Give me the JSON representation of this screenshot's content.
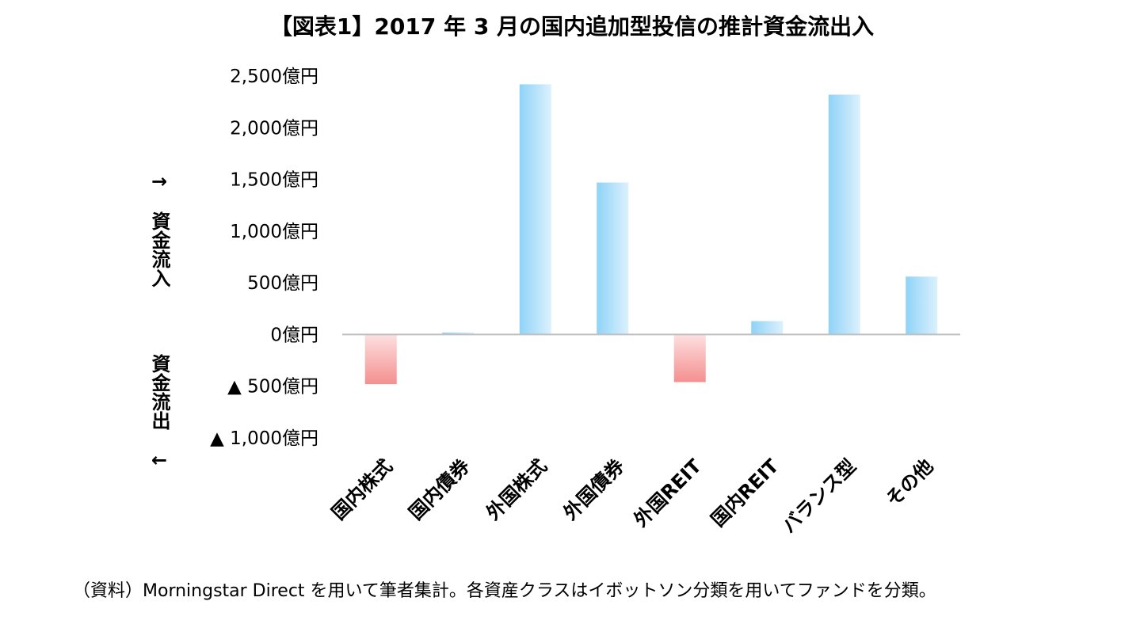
{
  "chart_data": {
    "type": "bar",
    "title": "【図表1】2017 年 3 月の国内追加型投信の推計資金流出入",
    "categories": [
      "国内株式",
      "国内債券",
      "外国株式",
      "外国債券",
      "外国REIT",
      "国内REIT",
      "バランス型",
      "その他"
    ],
    "values": [
      -480,
      20,
      2420,
      1470,
      -460,
      130,
      2320,
      560
    ],
    "unit": "億円",
    "ylim": [
      -1000,
      2500
    ],
    "yticks": [
      2500,
      2000,
      1500,
      1000,
      500,
      0,
      -500,
      -1000
    ],
    "ytick_labels": [
      "2,500億円",
      "2,000億円",
      "1,500億円",
      "1,000億円",
      "500億円",
      "0億円",
      "▲ 500億円",
      "▲ 1,000億円"
    ],
    "ylabel_positive": "→　資金流入",
    "ylabel_negative": "資金流出　←",
    "grid": false,
    "legend": "none",
    "colors": {
      "positive": "#8fd3f7",
      "negative": "#f7a1a1"
    }
  },
  "source_note": "（資料）Morningstar Direct を用いて筆者集計。各資産クラスはイボットソン分類を用いてファンドを分類。"
}
